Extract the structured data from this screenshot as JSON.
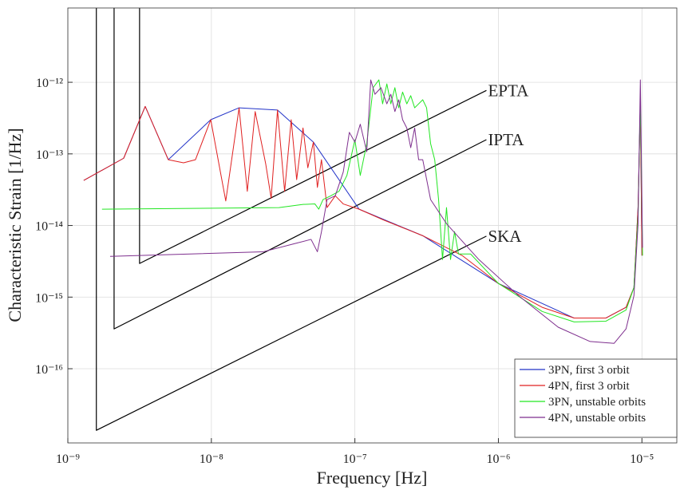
{
  "chart_data": {
    "type": "line",
    "xlabel": "Frequency [Hz]",
    "ylabel": "Characteristic Strain [1/Hz]",
    "xscale": "log",
    "yscale": "log",
    "xlim": [
      1e-09,
      1.75e-05
    ],
    "ylim": [
      9.2e-18,
      1.09e-11
    ],
    "xticks": [
      {
        "value": 1e-09,
        "label": "10⁻⁹"
      },
      {
        "value": 1e-08,
        "label": "10⁻⁸"
      },
      {
        "value": 1e-07,
        "label": "10⁻⁷"
      },
      {
        "value": 1e-06,
        "label": "10⁻⁶"
      },
      {
        "value": 1e-05,
        "label": "10⁻⁵"
      }
    ],
    "yticks": [
      {
        "value": 1e-16,
        "label": "10⁻¹⁶"
      },
      {
        "value": 1e-15,
        "label": "10⁻¹⁵"
      },
      {
        "value": 1e-14,
        "label": "10⁻¹⁴"
      },
      {
        "value": 1e-13,
        "label": "10⁻¹³"
      },
      {
        "value": 1e-12,
        "label": "10⁻¹²"
      }
    ],
    "grid": true,
    "legend": "lower right",
    "series": [
      {
        "name": "3PN, first 3 orbit",
        "color": "#2233c8",
        "x": [
          1.29e-09,
          2.45e-09,
          3.46e-09,
          5.01e-09,
          9.9e-09,
          1.56e-08,
          2.89e-08,
          5.14e-08,
          1.07e-07,
          2.97e-07,
          1e-06,
          3.37e-06,
          5.6e-06,
          7.75e-06,
          8.8e-06,
          9.4e-06,
          9.75e-06,
          1e-05
        ],
        "values": [
          4.26e-14,
          8.7e-14,
          4.6e-13,
          8.3e-14,
          3e-13,
          4.4e-13,
          4.1e-13,
          1.46e-13,
          1.69e-14,
          7.2e-15,
          1.55e-15,
          5.1e-16,
          5.1e-16,
          7.2e-16,
          1.36e-15,
          1.78e-14,
          5.4e-13,
          3.8e-15
        ]
      },
      {
        "name": "4PN, first 3 orbit",
        "color": "#e02020",
        "x": [
          1.29e-09,
          2.45e-09,
          3.46e-09,
          5.01e-09,
          6.4e-09,
          7.75e-09,
          9.9e-09,
          1.26e-08,
          1.56e-08,
          1.78e-08,
          2.02e-08,
          2.39e-08,
          2.61e-08,
          2.89e-08,
          3.24e-08,
          3.6e-08,
          3.93e-08,
          4.35e-08,
          4.7e-08,
          5.14e-08,
          5.48e-08,
          5.85e-08,
          6.4e-08,
          7.3e-08,
          8.3e-08,
          1.07e-07,
          1.56e-07,
          2.97e-07,
          5.6e-07,
          1e-06,
          2.02e-06,
          3.37e-06,
          5.6e-06,
          7.75e-06,
          8.8e-06,
          9.4e-06,
          9.75e-06,
          1e-05
        ],
        "values": [
          4.26e-14,
          8.7e-14,
          4.6e-13,
          8.3e-14,
          7.5e-14,
          8.3e-14,
          3e-13,
          2.2e-14,
          4.4e-13,
          3e-14,
          3.9e-13,
          7.3e-14,
          2.4e-14,
          4.1e-13,
          3e-14,
          3e-13,
          4.37e-14,
          2.3e-13,
          6.4e-14,
          1.46e-13,
          3.4e-14,
          8.3e-14,
          1.78e-14,
          2.6e-14,
          2e-14,
          1.69e-14,
          1.21e-14,
          7.2e-15,
          3.8e-15,
          1.55e-15,
          7.2e-16,
          5.1e-16,
          5.1e-16,
          7.2e-16,
          1.36e-15,
          1.78e-14,
          5e-13,
          3.8e-15
        ]
      },
      {
        "name": "3PN, unstable orbits",
        "color": "#22e622",
        "x": [
          1.73e-09,
          2.96e-08,
          4.35e-08,
          5.27e-08,
          5.6e-08,
          6e-08,
          6.8e-08,
          7.75e-08,
          8.8e-08,
          1e-07,
          1.09e-07,
          1.21e-07,
          1.34e-07,
          1.47e-07,
          1.56e-07,
          1.67e-07,
          1.78e-07,
          1.9e-07,
          2.02e-07,
          2.15e-07,
          2.3e-07,
          2.45e-07,
          2.61e-07,
          2.97e-07,
          3.16e-07,
          3.37e-07,
          3.6e-07,
          3.83e-07,
          4.08e-07,
          4.35e-07,
          4.64e-07,
          4.95e-07,
          5.27e-07,
          6.4e-07,
          1e-06,
          2.02e-06,
          3.37e-06,
          5.6e-06,
          7.75e-06,
          8.8e-06,
          9.4e-06,
          9.75e-06,
          1.01e-05
        ],
        "values": [
          1.69e-14,
          1.78e-14,
          1.97e-14,
          2e-14,
          1.69e-14,
          2.3e-14,
          2.6e-14,
          3e-14,
          5e-14,
          1.57e-13,
          5e-14,
          1.39e-13,
          8.4e-13,
          1.08e-12,
          5e-13,
          9.5e-13,
          5e-13,
          8.4e-13,
          4.4e-13,
          7.3e-13,
          5e-13,
          6.5e-13,
          4.4e-13,
          5.7e-13,
          4.4e-13,
          1.39e-13,
          8.3e-14,
          2.3e-14,
          3.35e-15,
          1.78e-14,
          3.35e-15,
          8.2e-15,
          4e-15,
          4e-15,
          1.55e-15,
          6.3e-16,
          4.5e-16,
          4.6e-16,
          6.6e-16,
          1.36e-15,
          1.37e-14,
          5.7e-13,
          3.8e-15
        ]
      },
      {
        "name": "4PN, unstable orbits",
        "color": "#7e2f8e",
        "x": [
          1.97e-09,
          2.3e-08,
          3.83e-08,
          4.95e-08,
          5.48e-08,
          5.85e-08,
          6.4e-08,
          7.3e-08,
          8.3e-08,
          9.15e-08,
          1e-07,
          1.09e-07,
          1.21e-07,
          1.29e-07,
          1.38e-07,
          1.52e-07,
          1.67e-07,
          1.78e-07,
          1.9e-07,
          2.02e-07,
          2.15e-07,
          2.3e-07,
          2.45e-07,
          2.61e-07,
          2.78e-07,
          2.97e-07,
          3.37e-07,
          4.35e-07,
          7.3e-07,
          1.38e-06,
          2.61e-06,
          4.35e-06,
          6.4e-06,
          7.75e-06,
          8.8e-06,
          9.4e-06,
          9.75e-06,
          1.01e-05
        ],
        "values": [
          3.7e-15,
          4.3e-15,
          5.6e-15,
          6.4e-15,
          4.3e-15,
          8.2e-15,
          2.3e-14,
          2.6e-14,
          5.6e-14,
          2e-13,
          1.46e-13,
          2.6e-13,
          1.07e-13,
          1.08e-12,
          6.8e-13,
          8.4e-13,
          5e-13,
          6.8e-13,
          3.9e-13,
          5.7e-13,
          3e-13,
          2.3e-13,
          1.22e-13,
          2.3e-13,
          8.3e-14,
          8.3e-14,
          2.3e-14,
          1.06e-14,
          3.35e-15,
          1.05e-15,
          3.8e-16,
          2.4e-16,
          2.26e-16,
          3.6e-16,
          1.05e-15,
          1.06e-14,
          1.08e-12,
          4.9e-15
        ]
      }
    ],
    "sensitivity_curves": [
      {
        "label": "EPTA",
        "color": "#000000",
        "x": [
          3.16e-09,
          3.16e-09,
          8.25e-07
        ],
        "values": [
          1.09e-11,
          2.95e-15,
          7.7e-13
        ]
      },
      {
        "label": "IPTA",
        "color": "#000000",
        "x": [
          2.1e-09,
          2.1e-09,
          8.25e-07
        ],
        "values": [
          1.09e-11,
          3.6e-16,
          1.58e-13
        ]
      },
      {
        "label": "SKA",
        "color": "#000000",
        "x": [
          1.58e-09,
          1.58e-09,
          8.25e-07
        ],
        "values": [
          1.09e-11,
          1.38e-17,
          7.1e-15
        ]
      }
    ]
  }
}
